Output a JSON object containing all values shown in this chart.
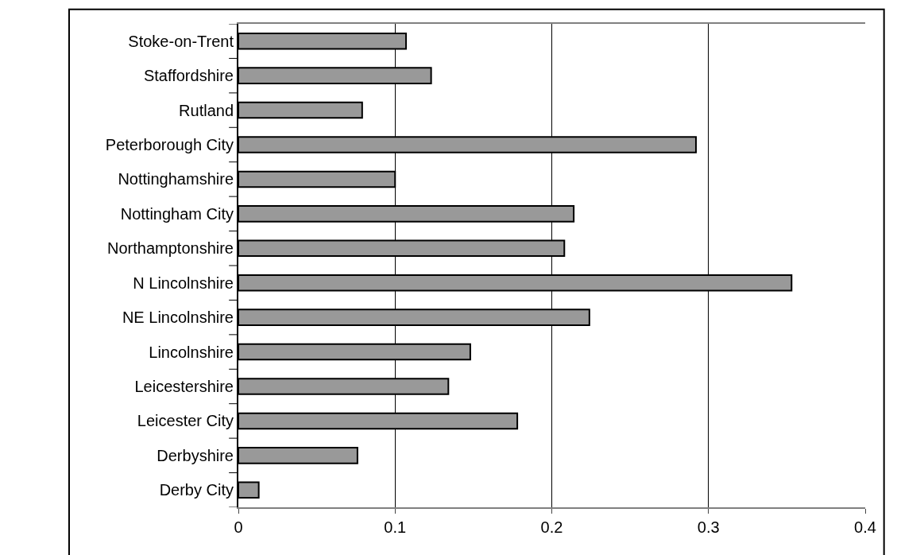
{
  "chart_data": {
    "type": "bar",
    "orientation": "horizontal",
    "categories": [
      "Stoke-on-Trent",
      "Staffordshire",
      "Rutland",
      "Peterborough City",
      "Nottinghamshire",
      "Nottingham City",
      "Northamptonshire",
      "N Lincolnshire",
      "NE Lincolnshire",
      "Lincolnshire",
      "Leicestershire",
      "Leicester City",
      "Derbyshire",
      "Derby City"
    ],
    "values": [
      0.107,
      0.123,
      0.079,
      0.292,
      0.1,
      0.214,
      0.208,
      0.353,
      0.224,
      0.148,
      0.134,
      0.178,
      0.076,
      0.013
    ],
    "color": "#999999",
    "xlim": [
      0,
      0.4
    ],
    "xticks": [
      0,
      0.1,
      0.2,
      0.3,
      0.4
    ],
    "grid": "x"
  }
}
